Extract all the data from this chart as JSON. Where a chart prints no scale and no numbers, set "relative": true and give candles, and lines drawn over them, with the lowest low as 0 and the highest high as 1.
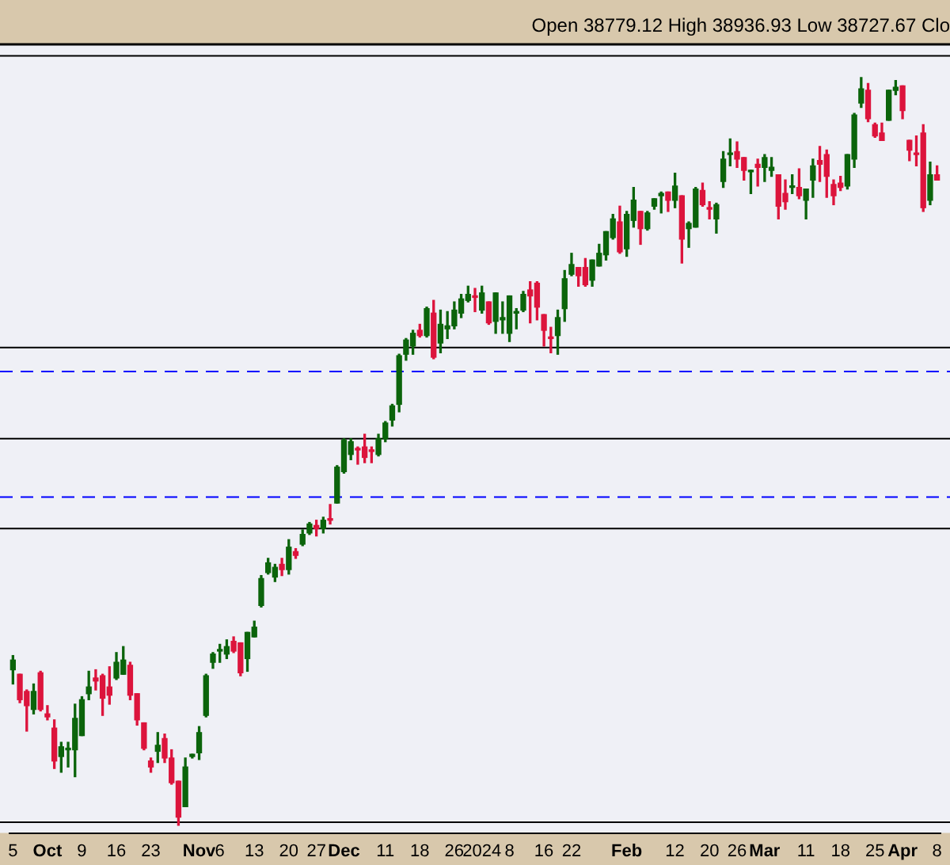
{
  "chart_data": {
    "type": "candlestick",
    "relative": true,
    "grid": false,
    "legend": false,
    "annotations": [
      "Open 38779.12 High 38936.93 Low 38727.67 Clo"
    ],
    "colors": [
      "#0b640b",
      "#dc143c",
      "#dc143c",
      "#0b640b",
      "#dc143c",
      "#dc143c",
      "#dc143c",
      "#0b640b",
      "#0b640b",
      "#0b640b",
      "#0b640b",
      "#0b640b",
      "#dc143c",
      "#dc143c",
      "#dc143c",
      "#0b640b",
      "#0b640b",
      "#dc143c",
      "#dc143c",
      "#dc143c",
      "#dc143c",
      "#0b640b",
      "#dc143c",
      "#dc143c",
      "#dc143c",
      "#0b640b",
      "#0b640b",
      "#0b640b",
      "#0b640b",
      "#0b640b",
      "#0b640b",
      "#0b640b",
      "#dc143c",
      "#dc143c",
      "#0b640b",
      "#0b640b",
      "#0b640b",
      "#0b640b",
      "#0b640b",
      "#dc143c",
      "#0b640b",
      "#dc143c",
      "#0b640b",
      "#0b640b",
      "#dc143c",
      "#0b640b",
      "#dc143c",
      "#0b640b",
      "#0b640b",
      "#0b640b",
      "#dc143c",
      "#dc143c",
      "#dc143c",
      "#0b640b",
      "#0b640b",
      "#0b640b",
      "#0b640b",
      "#0b640b",
      "#0b640b",
      "#dc143c",
      "#0b640b",
      "#dc143c",
      "#0b640b",
      "#0b640b",
      "#0b640b",
      "#0b640b",
      "#0b640b",
      "#dc143c",
      "#0b640b",
      "#dc143c",
      "#0b640b",
      "#0b640b",
      "#0b640b",
      "#0b640b",
      "#0b640b",
      "#dc143c",
      "#dc143c",
      "#dc143c",
      "#dc143c",
      "#0b640b",
      "#0b640b",
      "#0b640b",
      "#dc143c",
      "#dc143c",
      "#0b640b",
      "#0b640b",
      "#0b640b",
      "#0b640b",
      "#dc143c",
      "#0b640b",
      "#0b640b",
      "#dc143c",
      "#0b640b",
      "#0b640b",
      "#0b640b",
      "#dc143c",
      "#0b640b",
      "#dc143c",
      "#0b640b",
      "#0b640b",
      "#dc143c",
      "#dc143c",
      "#0b640b",
      "#0b640b",
      "#0b640b",
      "#dc143c",
      "#dc143c",
      "#0b640b",
      "#dc143c",
      "#0b640b",
      "#0b640b",
      "#dc143c",
      "#dc143c",
      "#0b640b",
      "#dc143c",
      "#0b640b",
      "#0b640b",
      "#dc143c",
      "#dc143c",
      "#dc143c",
      "#dc143c",
      "#0b640b",
      "#0b640b",
      "#0b640b",
      "#dc143c",
      "#dc143c",
      "#dc143c",
      "#0b640b",
      "#0b640b",
      "#dc143c",
      "#dc143c",
      "#dc143c",
      "#dc143c",
      "#0b640b",
      "#dc143c"
    ],
    "ref_lines": [
      {
        "axis": "y",
        "value": 1.029,
        "color": "#000000",
        "line_style": "solid"
      },
      {
        "axis": "y",
        "value": 0.639,
        "color": "#000000",
        "line_style": "solid"
      },
      {
        "axis": "y",
        "value": 0.607,
        "color": "#0000ff",
        "line_style": "dashed"
      },
      {
        "axis": "y",
        "value": 0.517,
        "color": "#000000",
        "line_style": "solid"
      },
      {
        "axis": "y",
        "value": 0.439,
        "color": "#0000ff",
        "line_style": "dashed"
      },
      {
        "axis": "y",
        "value": 0.397,
        "color": "#000000",
        "line_style": "solid"
      },
      {
        "axis": "y",
        "value": 0.004,
        "color": "#000000",
        "line_style": "solid"
      }
    ],
    "categories": [
      "5",
      null,
      null,
      null,
      null,
      "Oct",
      null,
      null,
      null,
      null,
      "9",
      null,
      null,
      null,
      null,
      "16",
      null,
      null,
      null,
      null,
      "23",
      null,
      null,
      null,
      null,
      null,
      null,
      "Nov",
      null,
      null,
      "6",
      null,
      null,
      null,
      null,
      "13",
      null,
      null,
      null,
      null,
      "20",
      null,
      null,
      null,
      "27",
      null,
      null,
      null,
      "Dec",
      null,
      null,
      null,
      null,
      null,
      "11",
      null,
      null,
      null,
      null,
      "18",
      null,
      null,
      null,
      null,
      "26",
      null,
      null,
      null,
      "2024",
      null,
      null,
      null,
      "8",
      null,
      null,
      null,
      null,
      "16",
      null,
      null,
      null,
      "22",
      null,
      null,
      null,
      null,
      null,
      null,
      null,
      "Feb",
      null,
      null,
      null,
      null,
      null,
      null,
      "12",
      null,
      null,
      null,
      null,
      "20",
      null,
      null,
      null,
      "26",
      null,
      null,
      null,
      "Mar",
      null,
      null,
      null,
      null,
      null,
      "11",
      null,
      null,
      null,
      null,
      "18",
      null,
      null,
      null,
      null,
      "25",
      null,
      null,
      null,
      "Apr",
      null,
      null,
      null,
      null,
      "8"
    ],
    "ohlc": [
      [
        0.208,
        0.227,
        0.189,
        0.221
      ],
      [
        0.202,
        0.202,
        0.164,
        0.168
      ],
      [
        0.179,
        0.181,
        0.126,
        0.16
      ],
      [
        0.155,
        0.189,
        0.149,
        0.179
      ],
      [
        0.204,
        0.206,
        0.153,
        0.155
      ],
      [
        0.149,
        0.16,
        0.141,
        0.145
      ],
      [
        0.13,
        0.141,
        0.076,
        0.086
      ],
      [
        0.092,
        0.111,
        0.071,
        0.105
      ],
      [
        0.101,
        0.111,
        0.078,
        0.103
      ],
      [
        0.101,
        0.162,
        0.065,
        0.143
      ],
      [
        0.12,
        0.172,
        0.12,
        0.168
      ],
      [
        0.176,
        0.206,
        0.168,
        0.185
      ],
      [
        0.197,
        0.208,
        0.181,
        0.193
      ],
      [
        0.2,
        0.202,
        0.147,
        0.17
      ],
      [
        0.185,
        0.212,
        0.162,
        0.174
      ],
      [
        0.197,
        0.231,
        0.195,
        0.218
      ],
      [
        0.202,
        0.239,
        0.202,
        0.221
      ],
      [
        0.214,
        0.218,
        0.168,
        0.174
      ],
      [
        0.176,
        0.176,
        0.134,
        0.141
      ],
      [
        0.137,
        0.137,
        0.101,
        0.103
      ],
      [
        0.086,
        0.09,
        0.071,
        0.078
      ],
      [
        0.099,
        0.124,
        0.084,
        0.107
      ],
      [
        0.116,
        0.122,
        0.084,
        0.09
      ],
      [
        0.09,
        0.101,
        0.055,
        0.057
      ],
      [
        0.059,
        0.059,
        0,
        0.011
      ],
      [
        0.025,
        0.09,
        0.025,
        0.078
      ],
      [
        0.092,
        0.095,
        0.09,
        0.095
      ],
      [
        0.097,
        0.132,
        0.088,
        0.124
      ],
      [
        0.147,
        0.202,
        0.145,
        0.2
      ],
      [
        0.218,
        0.231,
        0.21,
        0.229
      ],
      [
        0.233,
        0.242,
        0.218,
        0.235
      ],
      [
        0.229,
        0.248,
        0.223,
        0.239
      ],
      [
        0.246,
        0.252,
        0.231,
        0.233
      ],
      [
        0.244,
        0.244,
        0.2,
        0.204
      ],
      [
        0.223,
        0.258,
        0.206,
        0.258
      ],
      [
        0.252,
        0.273,
        0.252,
        0.265
      ],
      [
        0.294,
        0.334,
        0.292,
        0.33
      ],
      [
        0.338,
        0.357,
        0.336,
        0.351
      ],
      [
        0.332,
        0.349,
        0.326,
        0.345
      ],
      [
        0.349,
        0.357,
        0.334,
        0.342
      ],
      [
        0.342,
        0.382,
        0.336,
        0.372
      ],
      [
        0.366,
        0.37,
        0.357,
        0.361
      ],
      [
        0.376,
        0.395,
        0.374,
        0.389
      ],
      [
        0.391,
        0.405,
        0.389,
        0.403
      ],
      [
        0.401,
        0.408,
        0.387,
        0.397
      ],
      [
        0.397,
        0.412,
        0.391,
        0.408
      ],
      [
        0.41,
        0.429,
        0.403,
        0.408
      ],
      [
        0.431,
        0.481,
        0.431,
        0.479
      ],
      [
        0.473,
        0.517,
        0.471,
        0.515
      ],
      [
        0.496,
        0.517,
        0.489,
        0.513
      ],
      [
        0.504,
        0.506,
        0.483,
        0.502
      ],
      [
        0.506,
        0.523,
        0.485,
        0.492
      ],
      [
        0.502,
        0.506,
        0.485,
        0.5
      ],
      [
        0.496,
        0.523,
        0.494,
        0.517
      ],
      [
        0.517,
        0.54,
        0.513,
        0.538
      ],
      [
        0.542,
        0.563,
        0.534,
        0.561
      ],
      [
        0.563,
        0.63,
        0.553,
        0.628
      ],
      [
        0.63,
        0.651,
        0.622,
        0.649
      ],
      [
        0.641,
        0.662,
        0.63,
        0.658
      ],
      [
        0.662,
        0.67,
        0.653,
        0.655
      ],
      [
        0.655,
        0.693,
        0.653,
        0.691
      ],
      [
        0.685,
        0.702,
        0.624,
        0.626
      ],
      [
        0.645,
        0.689,
        0.632,
        0.67
      ],
      [
        0.664,
        0.687,
        0.651,
        0.668
      ],
      [
        0.668,
        0.7,
        0.664,
        0.689
      ],
      [
        0.685,
        0.71,
        0.679,
        0.704
      ],
      [
        0.702,
        0.721,
        0.7,
        0.71
      ],
      [
        0.708,
        0.718,
        0.687,
        0.706
      ],
      [
        0.689,
        0.721,
        0.685,
        0.712
      ],
      [
        0.7,
        0.7,
        0.67,
        0.672
      ],
      [
        0.674,
        0.712,
        0.658,
        0.712
      ],
      [
        0.676,
        0.7,
        0.658,
        0.679
      ],
      [
        0.658,
        0.708,
        0.647,
        0.708
      ],
      [
        0.685,
        0.691,
        0.664,
        0.687
      ],
      [
        0.689,
        0.714,
        0.687,
        0.71
      ],
      [
        0.716,
        0.727,
        0.672,
        0.708
      ],
      [
        0.725,
        0.727,
        0.676,
        0.693
      ],
      [
        0.683,
        0.683,
        0.641,
        0.662
      ],
      [
        0.653,
        0.666,
        0.632,
        0.651
      ],
      [
        0.655,
        0.689,
        0.63,
        0.679
      ],
      [
        0.691,
        0.742,
        0.674,
        0.731
      ],
      [
        0.737,
        0.765,
        0.735,
        0.75
      ],
      [
        0.746,
        0.746,
        0.721,
        0.735
      ],
      [
        0.746,
        0.758,
        0.721,
        0.723
      ],
      [
        0.729,
        0.756,
        0.721,
        0.756
      ],
      [
        0.748,
        0.777,
        0.748,
        0.765
      ],
      [
        0.763,
        0.794,
        0.756,
        0.794
      ],
      [
        0.786,
        0.817,
        0.784,
        0.811
      ],
      [
        0.807,
        0.828,
        0.765,
        0.767
      ],
      [
        0.771,
        0.821,
        0.761,
        0.817
      ],
      [
        0.809,
        0.853,
        0.8,
        0.836
      ],
      [
        0.821,
        0.821,
        0.777,
        0.798
      ],
      [
        0.798,
        0.821,
        0.796,
        0.819
      ],
      [
        0.828,
        0.838,
        0.824,
        0.838
      ],
      [
        0.842,
        0.847,
        0.819,
        0.845
      ],
      [
        0.847,
        0.847,
        0.821,
        0.836
      ],
      [
        0.836,
        0.872,
        0.826,
        0.855
      ],
      [
        0.842,
        0.842,
        0.752,
        0.784
      ],
      [
        0.798,
        0.807,
        0.773,
        0.805
      ],
      [
        0.8,
        0.853,
        0.8,
        0.851
      ],
      [
        0.849,
        0.859,
        0.828,
        0.83
      ],
      [
        0.826,
        0.834,
        0.811,
        0.824
      ],
      [
        0.811,
        0.832,
        0.792,
        0.83
      ],
      [
        0.861,
        0.901,
        0.853,
        0.891
      ],
      [
        0.897,
        0.918,
        0.882,
        0.899
      ],
      [
        0.901,
        0.914,
        0.88,
        0.891
      ],
      [
        0.893,
        0.893,
        0.863,
        0.876
      ],
      [
        0.874,
        0.876,
        0.845,
        0.876
      ],
      [
        0.884,
        0.891,
        0.855,
        0.88
      ],
      [
        0.88,
        0.897,
        0.861,
        0.893
      ],
      [
        0.876,
        0.893,
        0.868,
        0.88
      ],
      [
        0.87,
        0.87,
        0.811,
        0.828
      ],
      [
        0.845,
        0.863,
        0.824,
        0.834
      ],
      [
        0.853,
        0.87,
        0.845,
        0.855
      ],
      [
        0.853,
        0.878,
        0.838,
        0.842
      ],
      [
        0.836,
        0.851,
        0.811,
        0.851
      ],
      [
        0.863,
        0.891,
        0.84,
        0.882
      ],
      [
        0.889,
        0.908,
        0.861,
        0.884
      ],
      [
        0.897,
        0.903,
        0.84,
        0.868
      ],
      [
        0.857,
        0.863,
        0.83,
        0.842
      ],
      [
        0.859,
        0.868,
        0.849,
        0.853
      ],
      [
        0.855,
        0.897,
        0.851,
        0.897
      ],
      [
        0.891,
        0.952,
        0.88,
        0.95
      ],
      [
        0.966,
        1,
        0.96,
        0.985
      ],
      [
        0.983,
        0.992,
        0.941,
        0.945
      ],
      [
        0.937,
        0.939,
        0.92,
        0.922
      ],
      [
        0.926,
        0.939,
        0.916,
        0.916
      ],
      [
        0.943,
        0.983,
        0.943,
        0.983
      ],
      [
        0.983,
        0.996,
        0.977,
        0.987
      ],
      [
        0.989,
        0.989,
        0.945,
        0.956
      ],
      [
        0.916,
        0.916,
        0.889,
        0.903
      ],
      [
        0.899,
        0.922,
        0.882,
        0.897
      ],
      [
        0.926,
        0.937,
        0.821,
        0.826
      ],
      [
        0.836,
        0.887,
        0.83,
        0.87
      ],
      [
        0.87,
        0.882,
        0.863,
        0.863
      ]
    ]
  }
}
